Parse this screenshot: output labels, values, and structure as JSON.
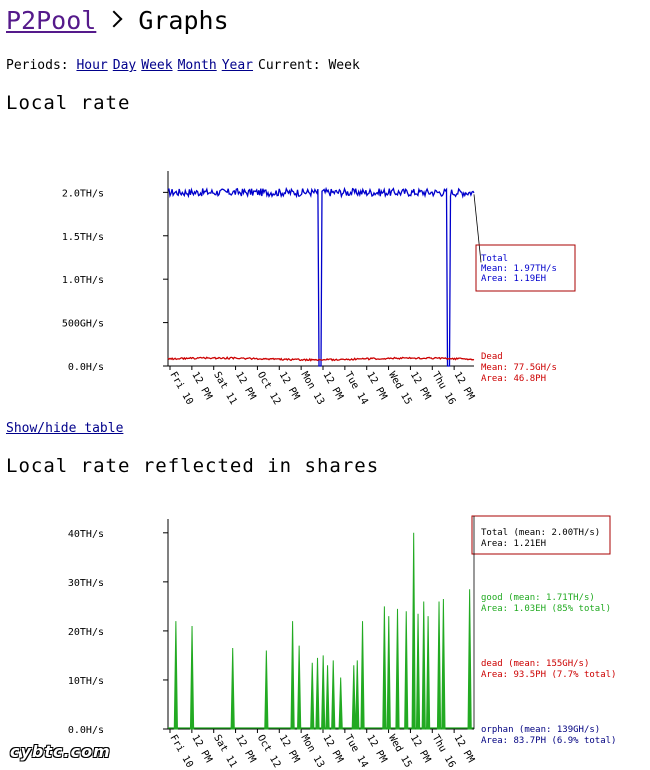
{
  "header": {
    "app_link": "P2Pool",
    "title": "Graphs"
  },
  "periods": {
    "label": "Periods:",
    "links": [
      "Hour",
      "Day",
      "Week",
      "Month",
      "Year"
    ],
    "current_label": "Current:",
    "current_value": "Week"
  },
  "colors": {
    "total": "#0000cc",
    "dead": "#cc0000",
    "good": "#22aa22",
    "orphan": "#000080",
    "callout_border": "#aa0000"
  },
  "watermark": "cybtc.com",
  "show_hide_table": "Show/hide table",
  "chart_data": [
    {
      "type": "line",
      "title": "Local rate",
      "y_unit": "H/s",
      "ylim": [
        0,
        2200000000000
      ],
      "y_ticks": [
        0,
        500000000000,
        1000000000000,
        1500000000000,
        2000000000000
      ],
      "y_tick_labels": [
        "0.0H/s",
        "500GH/s",
        "1.0TH/s",
        "1.5TH/s",
        "2.0TH/s"
      ],
      "x_tick_labels": [
        "Fri 10",
        "12 PM",
        "Sat 11",
        "12 PM",
        "Oct 12",
        "12 PM",
        "Mon 13",
        "12 PM",
        "Tue 14",
        "12 PM",
        "Wed 15",
        "12 PM",
        "Thu 16",
        "12 PM"
      ],
      "x_days": 7,
      "grid": false,
      "series": [
        {
          "name": "Total",
          "mean_label": "Mean: 1.97TH/s",
          "area_label": "Area: 1.19EH",
          "base": 2000000000000,
          "noise": 45000000000,
          "drops_at_day": [
            3.48,
            6.42
          ],
          "drop_value": 0
        },
        {
          "name": "Dead",
          "mean_label": "Mean: 77.5GH/s",
          "area_label": "Area: 46.8PH",
          "base": 77500000000,
          "noise": 20000000000,
          "drops_at_day": [],
          "drop_value": 0
        }
      ]
    },
    {
      "type": "area",
      "title": "Local rate reflected in shares",
      "y_unit": "H/s",
      "ylim": [
        0,
        42000000000000
      ],
      "y_ticks": [
        0,
        10000000000000,
        20000000000000,
        30000000000000,
        40000000000000
      ],
      "y_tick_labels": [
        "0.0H/s",
        "10TH/s",
        "20TH/s",
        "30TH/s",
        "40TH/s"
      ],
      "x_tick_labels": [
        "Fri 10",
        "12 PM",
        "Sat 11",
        "12 PM",
        "Oct 12",
        "12 PM",
        "Mon 13",
        "12 PM",
        "Tue 14",
        "12 PM",
        "Wed 15",
        "12 PM",
        "Thu 16",
        "12 PM"
      ],
      "x_days": 7,
      "grid": false,
      "total_label": "Total (mean: 2.00TH/s)",
      "total_area_label": "Area: 1.21EH",
      "legend": [
        {
          "name": "good",
          "mean_label": "good (mean: 1.71TH/s)",
          "area_label": "Area: 1.03EH (85% total)"
        },
        {
          "name": "dead",
          "mean_label": "dead (mean: 155GH/s)",
          "area_label": "Area: 93.5PH (7.7% total)"
        },
        {
          "name": "orphan",
          "mean_label": "orphan (mean: 139GH/s)",
          "area_label": "Area: 83.7PH (6.9% total)"
        }
      ],
      "spikes": [
        {
          "day": 0.18,
          "value": 22000000000000
        },
        {
          "day": 0.55,
          "value": 21000000000000
        },
        {
          "day": 1.48,
          "value": 16500000000000
        },
        {
          "day": 2.25,
          "value": 16000000000000
        },
        {
          "day": 2.85,
          "value": 22000000000000
        },
        {
          "day": 3.0,
          "value": 17000000000000
        },
        {
          "day": 3.3,
          "value": 13500000000000
        },
        {
          "day": 3.42,
          "value": 14500000000000
        },
        {
          "day": 3.55,
          "value": 15000000000000
        },
        {
          "day": 3.65,
          "value": 13000000000000
        },
        {
          "day": 3.78,
          "value": 14000000000000
        },
        {
          "day": 3.95,
          "value": 10500000000000
        },
        {
          "day": 4.25,
          "value": 13000000000000
        },
        {
          "day": 4.33,
          "value": 14000000000000
        },
        {
          "day": 4.45,
          "value": 22000000000000
        },
        {
          "day": 4.95,
          "value": 25000000000000
        },
        {
          "day": 5.05,
          "value": 23000000000000
        },
        {
          "day": 5.25,
          "value": 24500000000000
        },
        {
          "day": 5.45,
          "value": 24000000000000
        },
        {
          "day": 5.62,
          "value": 40000000000000
        },
        {
          "day": 5.72,
          "value": 23500000000000
        },
        {
          "day": 5.85,
          "value": 26000000000000
        },
        {
          "day": 5.95,
          "value": 23000000000000
        },
        {
          "day": 6.2,
          "value": 26000000000000
        },
        {
          "day": 6.3,
          "value": 26500000000000
        },
        {
          "day": 6.9,
          "value": 28500000000000
        }
      ]
    }
  ]
}
